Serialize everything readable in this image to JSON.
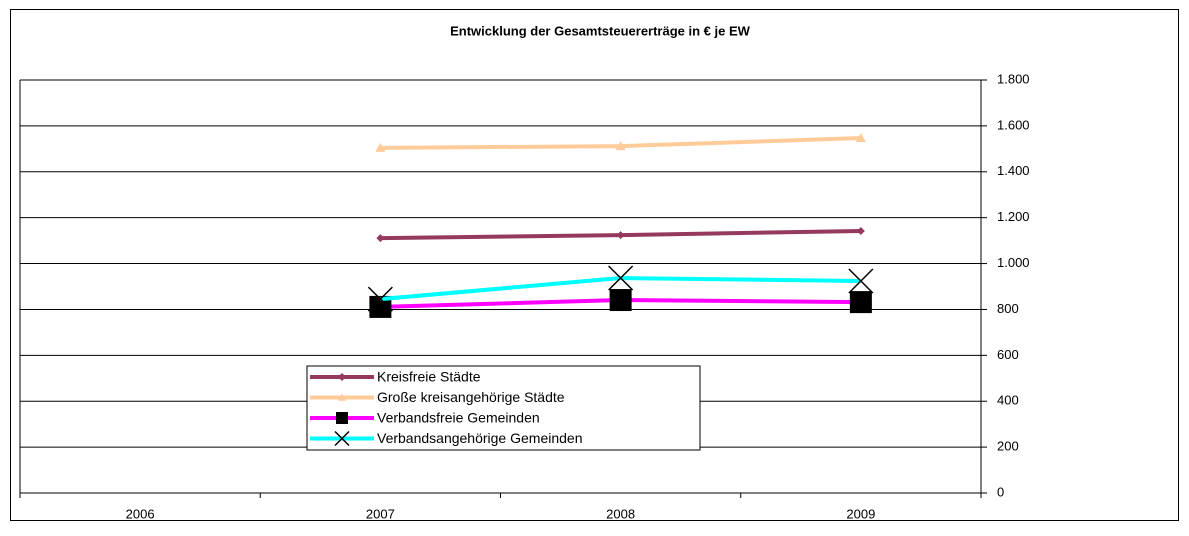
{
  "chart_data": {
    "type": "line",
    "title": "Entwicklung der Gesamtsteuererträge in € je EW",
    "categories": [
      "2006",
      "2007",
      "2008",
      "2009"
    ],
    "series": [
      {
        "name": "Kreisfreie Städte",
        "color": "#953a5e",
        "marker": "diamond",
        "values": [
          null,
          1111,
          1124,
          1142
        ]
      },
      {
        "name": "Große kreisangehörige Städte",
        "color": "#ffcc99",
        "marker": "triangle",
        "values": [
          null,
          1504,
          1512,
          1547
        ]
      },
      {
        "name": "Verbandsfreie Gemeinden",
        "color": "#ff00ff",
        "marker": "square",
        "values": [
          null,
          811,
          841,
          832
        ]
      },
      {
        "name": "Verbandsangehörige Gemeinden",
        "color": "#00ffff",
        "marker": "x",
        "values": [
          null,
          845,
          937,
          924
        ]
      }
    ],
    "ylim": [
      0,
      1800
    ],
    "yticks": [
      0,
      200,
      400,
      600,
      800,
      {
        "value": 1000,
        "label": "1.000"
      },
      {
        "value": 1200,
        "label": "1.200"
      },
      {
        "value": 1400,
        "label": "1.400"
      },
      {
        "value": 1600,
        "label": "1.600"
      },
      {
        "value": 1800,
        "label": "1.800"
      }
    ],
    "grid": true,
    "y_axis_side": "right",
    "legend": "bottom-center"
  }
}
